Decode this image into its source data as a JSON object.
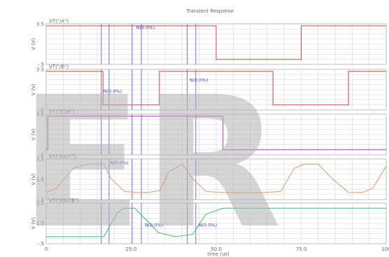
{
  "chart_data": {
    "type": "line",
    "title": "Transient Response",
    "xlabel": "time (us)",
    "xlim": [
      0,
      100
    ],
    "x_ticks": [
      "0",
      "25.0",
      "50.0",
      "75.0",
      "100"
    ],
    "panels": [
      {
        "legend": "VT(\"/A\")",
        "ylabel": "V (V)",
        "ylim": [
          -0.5,
          3.5
        ],
        "y_ticks": [
          "3.5",
          "-.5"
        ],
        "color": "#e05050",
        "series": [
          {
            "x": [
              0,
              50,
              50,
              75,
              75,
              100
            ],
            "y": [
              3.3,
              3.3,
              0,
              0,
              3.3,
              3.3
            ]
          }
        ]
      },
      {
        "legend": "VT(\"/B\")",
        "ylabel": "V (V)",
        "ylim": [
          -0.5,
          3.5
        ],
        "y_ticks": [
          "3.5",
          "-.5"
        ],
        "color": "#e05050",
        "series": [
          {
            "x": [
              0,
              16.7,
              16.7,
              33.3,
              33.3,
              66.7,
              66.7,
              88.9,
              88.9,
              100
            ],
            "y": [
              3.3,
              3.3,
              0,
              0,
              3.3,
              3.3,
              0,
              0,
              3.3,
              3.3
            ]
          }
        ]
      },
      {
        "legend": "VT(\"/CLK\")",
        "ylabel": "V (V)",
        "ylim": [
          -0.5,
          3.5
        ],
        "y_ticks": [
          "3.5",
          "-.5"
        ],
        "color": "#c040c0",
        "series": [
          {
            "x": [
              0,
              0.5,
              0.5,
              52,
              52,
              100
            ],
            "y": [
              0,
              0,
              3.3,
              3.3,
              0,
              0
            ]
          }
        ]
      },
      {
        "legend": "VT(\"/OUT\")",
        "ylabel": "V (V)",
        "ylim": [
          -0.5,
          3.5
        ],
        "y_ticks": [
          "3.5",
          "1.5",
          "-.5"
        ],
        "color": "#e0a070",
        "series": [
          {
            "x": [
              0,
              3,
              8,
              12,
              17,
              19,
              23,
              27,
              30,
              33.5,
              36,
              40,
              43,
              47,
              52,
              56,
              60,
              64,
              69,
              73,
              76,
              80,
              84,
              89,
              93,
              96,
              100
            ],
            "y": [
              0.2,
              0.6,
              2.6,
              3.0,
              3.0,
              1.6,
              0.3,
              0.2,
              0.2,
              0.4,
              2.2,
              3.0,
              1.6,
              0.3,
              0.2,
              0.2,
              0.2,
              0.2,
              0.3,
              2.6,
              3.0,
              3.0,
              1.6,
              0.2,
              0.2,
              0.6,
              2.8
            ]
          }
        ]
      },
      {
        "legend": "VT(\"/OUTB\")",
        "ylabel": "V (V)",
        "ylim": [
          -0.5,
          3.5
        ],
        "y_ticks": [
          "3.5",
          "1.5",
          "-.5"
        ],
        "color": "#50c080",
        "series": [
          {
            "x": [
              0,
              14,
              17,
              19,
              21,
              23,
              26,
              29,
              33,
              38,
              43,
              47,
              52,
              56,
              60,
              100
            ],
            "y": [
              0.2,
              0.2,
              0.2,
              1.4,
              2.6,
              3.0,
              3.0,
              2.0,
              0.6,
              0.2,
              0.4,
              2.4,
              3.0,
              3.0,
              3.0,
              3.0
            ]
          }
        ]
      }
    ],
    "markers": [
      {
        "x": 16.2,
        "panels": [
          0,
          1,
          2,
          3,
          4
        ]
      },
      {
        "x": 18.5,
        "panels": [
          0,
          1,
          2,
          3,
          4
        ]
      },
      {
        "x": 25.3,
        "panels": [
          0,
          1,
          2,
          3,
          4
        ]
      },
      {
        "x": 28.0,
        "panels": [
          0,
          1,
          2,
          3,
          4
        ]
      },
      {
        "x": 41.5,
        "panels": [
          0,
          1,
          2,
          3,
          4
        ]
      },
      {
        "x": 44.0,
        "panels": [
          0,
          1,
          2,
          3,
          4
        ]
      }
    ],
    "annotations": [
      {
        "panel": 0,
        "x": 26.5,
        "y": 3.0,
        "text": "N(0.0%)"
      },
      {
        "panel": 1,
        "x": 16.8,
        "y": 1.2,
        "text": "N(0.0%)"
      },
      {
        "panel": 1,
        "x": 42.2,
        "y": 2.3,
        "text": "N(0.0%)"
      },
      {
        "panel": 3,
        "x": 18.8,
        "y": 3.0,
        "text": "N(0.0%)"
      },
      {
        "panel": 4,
        "x": 29.0,
        "y": 1.2,
        "text": "N(0.0%)"
      },
      {
        "panel": 4,
        "x": 44.8,
        "y": 1.2,
        "text": "N(0.0%)"
      }
    ]
  },
  "watermark": {
    "text": "ER",
    "color": "#b4b4b4"
  }
}
